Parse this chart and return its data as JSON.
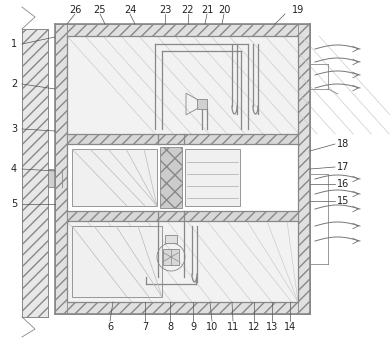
{
  "bg_color": "#ffffff",
  "line_color": "#888888",
  "fig_width": 3.9,
  "fig_height": 3.39,
  "label_color": "#222222",
  "label_fontsize": 7.0,
  "wall_hatch_color": "#aaaaaa",
  "inner_bg": "#f5f5f5"
}
